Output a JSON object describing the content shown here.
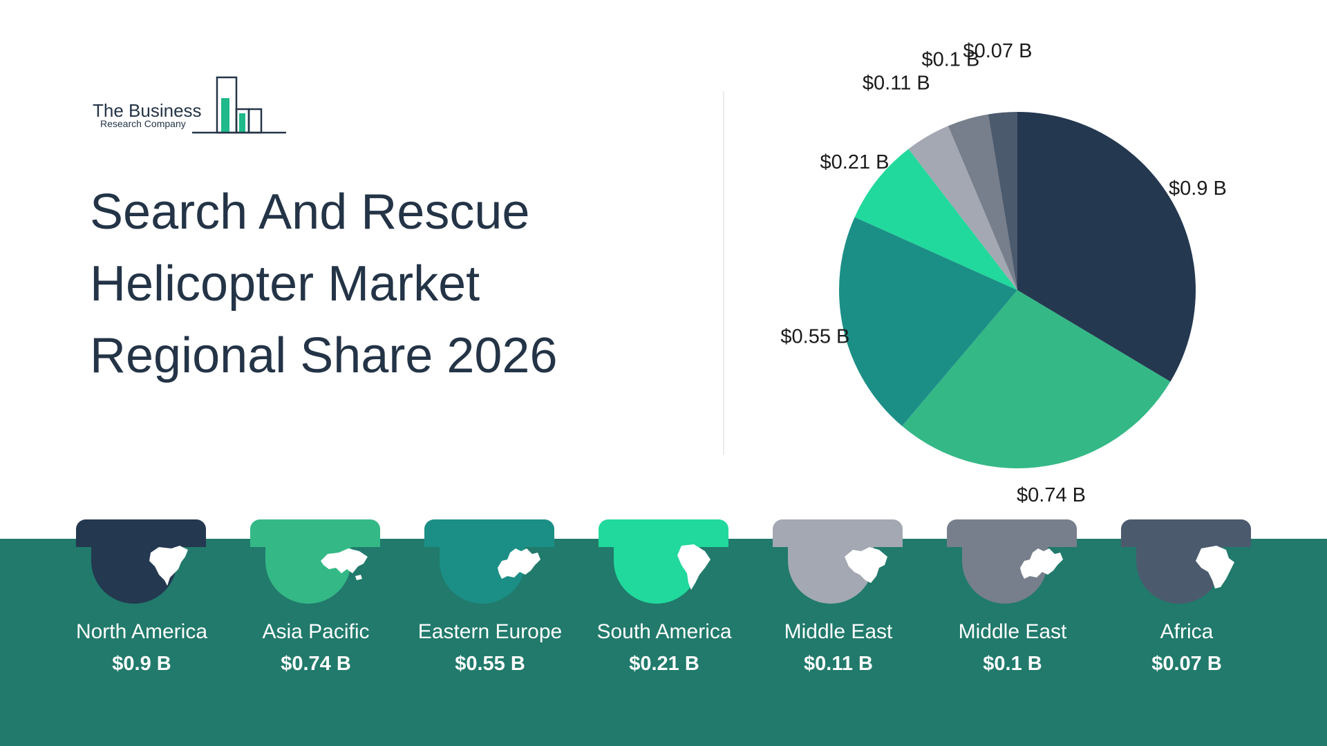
{
  "logo": {
    "line1": "The Business",
    "line2": "Research Company"
  },
  "title": {
    "line1": "Search And Rescue",
    "line2": "Helicopter Market",
    "line3": "Regional Share 2026"
  },
  "chart_data": {
    "type": "pie",
    "title": "Search And Rescue Helicopter Market Regional Share 2026",
    "unit": "$B",
    "slices": [
      {
        "label": "North America",
        "value": 0.9,
        "display": "$0.9 B",
        "color": "#243850"
      },
      {
        "label": "Asia Pacific",
        "value": 0.74,
        "display": "$0.74 B",
        "color": "#34b886"
      },
      {
        "label": "Eastern Europe",
        "value": 0.55,
        "display": "$0.55 B",
        "color": "#1b8f86"
      },
      {
        "label": "South America",
        "value": 0.21,
        "display": "$0.21 B",
        "color": "#21d99c"
      },
      {
        "label": "Middle East",
        "value": 0.11,
        "display": "$0.11 B",
        "color": "#a3a8b2"
      },
      {
        "label": "Middle East",
        "value": 0.1,
        "display": "$0.1 B",
        "color": "#777f8c"
      },
      {
        "label": "Africa",
        "value": 0.07,
        "display": "$0.07 B",
        "color": "#4c5a6e"
      }
    ]
  },
  "regions": [
    {
      "name": "North America",
      "value": "$0.9 B",
      "icon": "north-america-map-icon",
      "color": "#243850"
    },
    {
      "name": "Asia Pacific",
      "value": "$0.74 B",
      "icon": "asia-map-icon",
      "color": "#34b886"
    },
    {
      "name": "Eastern Europe",
      "value": "$0.55 B",
      "icon": "europe-map-icon",
      "color": "#1b8f86"
    },
    {
      "name": "South America",
      "value": "$0.21 B",
      "icon": "south-america-map-icon",
      "color": "#21d99c"
    },
    {
      "name": "Middle East",
      "value": "$0.11 B",
      "icon": "middle-east-map-icon",
      "color": "#a3a8b2"
    },
    {
      "name": "Middle East",
      "value": "$0.1 B",
      "icon": "europe-map-icon",
      "color": "#777f8c"
    },
    {
      "name": "Africa",
      "value": "$0.07 B",
      "icon": "africa-map-icon",
      "color": "#4c5a6e"
    }
  ],
  "colors": {
    "title": "#243447",
    "band": "#217a6b"
  }
}
